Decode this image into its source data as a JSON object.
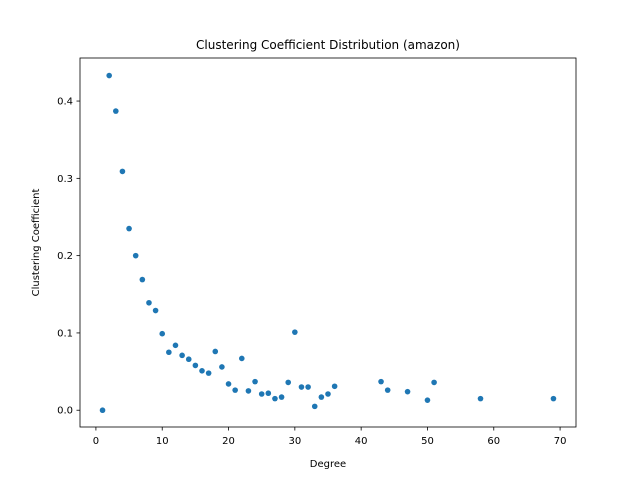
{
  "chart_data": {
    "type": "scatter",
    "title": "Clustering Coefficient Distribution (amazon)",
    "xlabel": "Degree",
    "ylabel": "Clustering Coefficient",
    "xlim": [
      -2.4,
      72.4
    ],
    "ylim": [
      -0.0217,
      0.4557
    ],
    "xticks": [
      0,
      10,
      20,
      30,
      40,
      50,
      60,
      70
    ],
    "xtick_labels": [
      "0",
      "10",
      "20",
      "30",
      "40",
      "50",
      "60",
      "70"
    ],
    "yticks": [
      0.0,
      0.1,
      0.2,
      0.3,
      0.4
    ],
    "ytick_labels": [
      "0.0",
      "0.1",
      "0.2",
      "0.3",
      "0.4"
    ],
    "grid": false,
    "legend": "none",
    "marker_color": "#1f77b4",
    "series": [
      {
        "x": [
          1,
          2,
          3,
          4,
          5,
          6,
          7,
          8,
          9,
          10,
          11,
          12,
          13,
          14,
          15,
          16,
          17,
          18,
          19,
          20,
          21,
          22,
          23,
          24,
          25,
          26,
          27,
          28,
          29,
          30,
          31,
          32,
          33,
          34,
          35,
          36,
          43,
          44,
          47,
          50,
          51,
          58,
          69
        ],
        "y": [
          0.0,
          0.433,
          0.387,
          0.309,
          0.235,
          0.2,
          0.169,
          0.139,
          0.129,
          0.099,
          0.075,
          0.084,
          0.071,
          0.066,
          0.058,
          0.051,
          0.048,
          0.076,
          0.056,
          0.034,
          0.026,
          0.067,
          0.025,
          0.037,
          0.021,
          0.022,
          0.015,
          0.017,
          0.036,
          0.101,
          0.03,
          0.03,
          0.005,
          0.017,
          0.021,
          0.031,
          0.037,
          0.026,
          0.024,
          0.013,
          0.036,
          0.015,
          0.015
        ]
      }
    ]
  }
}
